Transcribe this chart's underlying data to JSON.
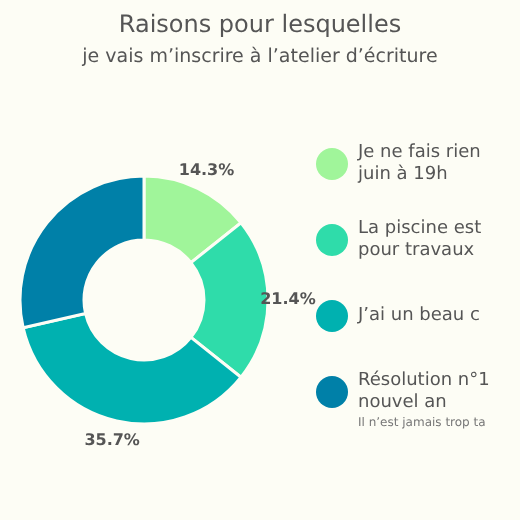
{
  "chart_data": {
    "type": "donut",
    "title": "Raisons pour lesquelles\nje vais m’inscrire à l’atelier d’écriture",
    "categories": [
      "Je ne fais rien\njuin à 19h",
      "La piscine est\npour travaux",
      "J’ai un beau c",
      "Résolution n°1\nnouvel an"
    ],
    "values": [
      14.3,
      21.4,
      35.7,
      28.6
    ],
    "value_labels": [
      "14.3%",
      "21.4%",
      "35.7%",
      null
    ],
    "colors": [
      "#a0f59a",
      "#2fdcaa",
      "#00b1b0",
      "#0080a8"
    ],
    "legend": "right",
    "annotations": [
      "Il n’est jamais trop ta"
    ]
  }
}
